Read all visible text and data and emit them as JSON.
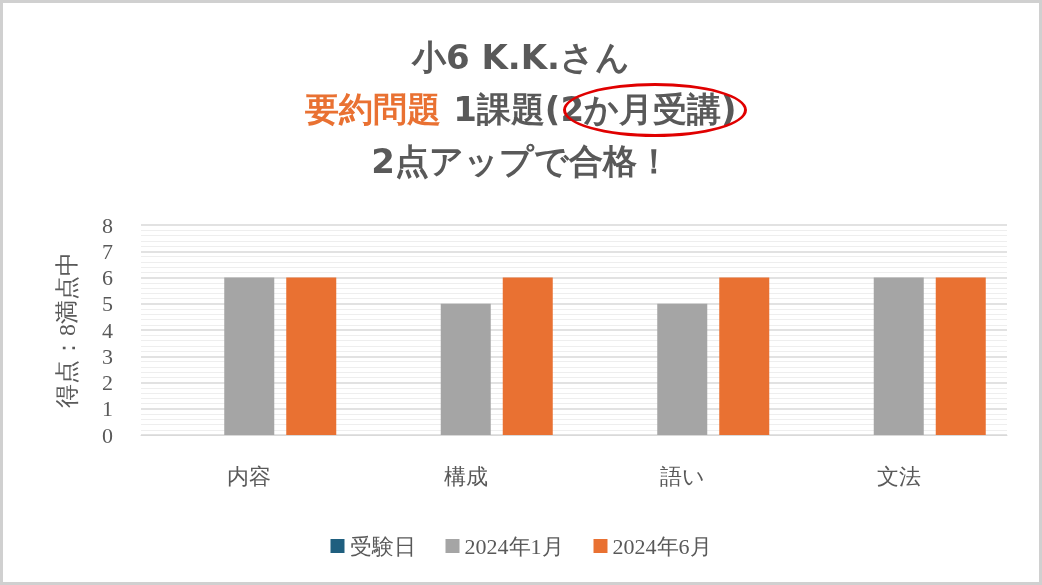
{
  "chart_data": {
    "type": "bar",
    "title": "小6 K.K.さん",
    "subtitle": "要約問題 1課題(2か月受講)",
    "annotations": [
      "2点アップで合格！"
    ],
    "ylabel": "得点：8満点中",
    "categories": [
      "内容",
      "構成",
      "語い",
      "文法"
    ],
    "series": [
      {
        "name": "受験日",
        "color": "#1f5f7f",
        "values": [
          null,
          null,
          null,
          null
        ]
      },
      {
        "name": "2024年1月",
        "color": "#a5a5a5",
        "values": [
          6,
          5,
          5,
          6
        ]
      },
      {
        "name": "2024年6月",
        "color": "#e97132",
        "values": [
          6,
          6,
          6,
          6
        ]
      }
    ],
    "ylim": [
      0,
      8
    ],
    "yticks": [
      0,
      1,
      2,
      3,
      4,
      5,
      6,
      7,
      8
    ],
    "grid": "y",
    "legend": "bottom"
  }
}
